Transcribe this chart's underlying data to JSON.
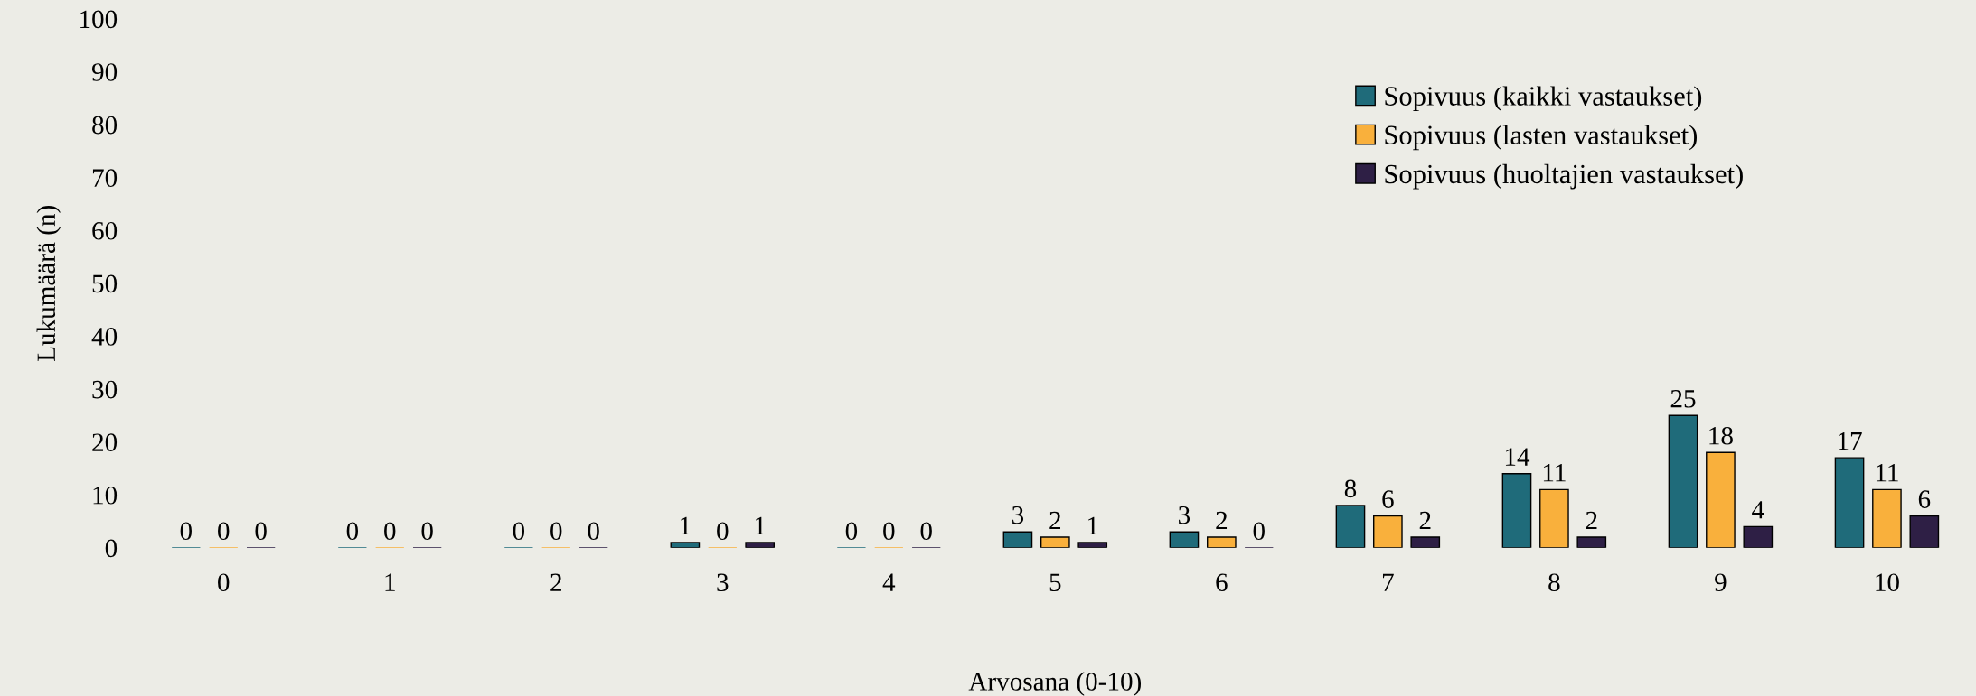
{
  "chart_data": {
    "type": "bar",
    "xlabel": "Arvosana (0-10)",
    "ylabel": "Lukumäärä (n)",
    "categories": [
      "0",
      "1",
      "2",
      "3",
      "4",
      "5",
      "6",
      "7",
      "8",
      "9",
      "10"
    ],
    "series": [
      {
        "name": "Sopivuus (kaikki vastaukset)",
        "color": "#1f6b7a",
        "values": [
          0,
          0,
          0,
          1,
          0,
          3,
          3,
          8,
          14,
          25,
          17
        ]
      },
      {
        "name": "Sopivuus (lasten vastaukset)",
        "color": "#f9b03c",
        "values": [
          0,
          0,
          0,
          0,
          0,
          2,
          2,
          6,
          11,
          18,
          11
        ]
      },
      {
        "name": "Sopivuus (huoltajien vastaukset)",
        "color": "#2e1f45",
        "values": [
          0,
          0,
          0,
          1,
          0,
          1,
          0,
          2,
          2,
          4,
          6
        ]
      }
    ],
    "ylim": [
      0,
      100
    ],
    "yticks": [
      0,
      10,
      20,
      30,
      40,
      50,
      60,
      70,
      80,
      90,
      100
    ],
    "data_labels": true,
    "grid": false,
    "legend": "top right"
  }
}
